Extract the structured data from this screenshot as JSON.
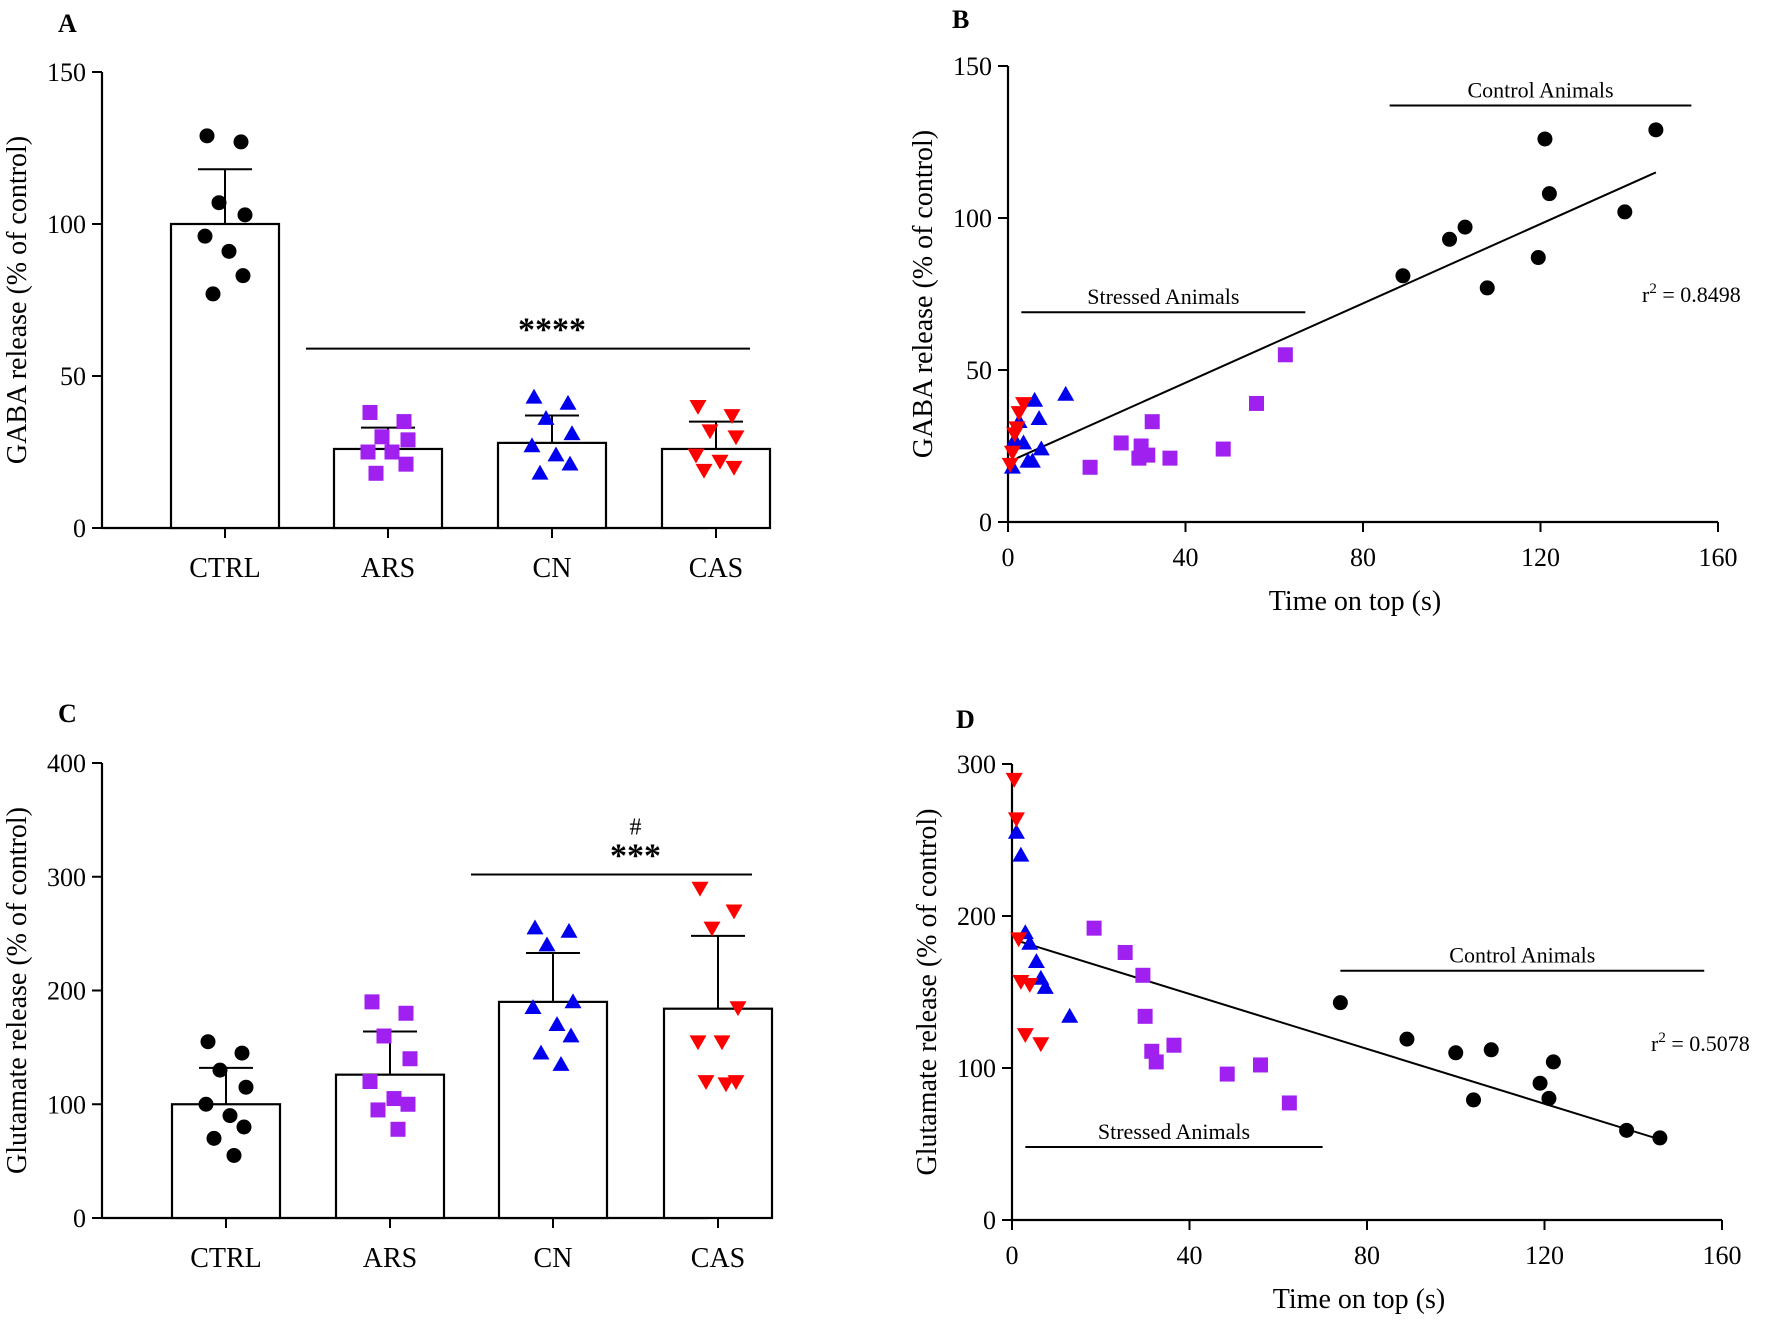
{
  "colors": {
    "ctrl": "#000000",
    "ars": "#a020f0",
    "cn": "#0000ee",
    "cas": "#ff0000",
    "axis": "#000000",
    "bar_fill": "#ffffff"
  },
  "chart_data": [
    {
      "id": "A",
      "panel": "A",
      "type": "bar",
      "ylabel": "GABA release (% of control)",
      "xlabel": "",
      "ylim": [
        0,
        150
      ],
      "yticks": [
        0,
        50,
        100,
        150
      ],
      "categories": [
        "CTRL",
        "ARS",
        "CN",
        "CAS"
      ],
      "values": [
        100,
        26,
        28,
        26
      ],
      "errors": [
        18,
        7,
        9,
        9
      ],
      "markers": [
        "circle",
        "square",
        "triangle-up",
        "triangle-down"
      ],
      "colors": [
        "#000000",
        "#a020f0",
        "#0000ee",
        "#ff0000"
      ],
      "points": [
        [
          129,
          127,
          107,
          103,
          96,
          91,
          83,
          77
        ],
        [
          38,
          35,
          30,
          29,
          25,
          25,
          21,
          18
        ],
        [
          43,
          41,
          36,
          31,
          27,
          24,
          21,
          18
        ],
        [
          40,
          37,
          32,
          30,
          24,
          22,
          20,
          19
        ]
      ],
      "significance": {
        "label": "****",
        "from": "ARS",
        "to": "CAS"
      }
    },
    {
      "id": "B",
      "panel": "B",
      "type": "scatter",
      "xlabel": "Time on top (s)",
      "ylabel": "GABA release (% of control)",
      "xlim": [
        0,
        160
      ],
      "ylim": [
        0,
        150
      ],
      "xticks": [
        0,
        40,
        80,
        120,
        160
      ],
      "yticks": [
        0,
        50,
        100,
        150
      ],
      "series": [
        {
          "name": "CTRL",
          "marker": "circle",
          "color": "#000000",
          "x": [
            89,
            99.5,
            103,
            108,
            119.5,
            121,
            122,
            139,
            146
          ],
          "y": [
            81,
            93,
            97,
            77,
            87,
            126,
            108,
            102,
            129
          ]
        },
        {
          "name": "ARS",
          "marker": "square",
          "color": "#a020f0",
          "x": [
            18.5,
            25.5,
            29.5,
            30,
            31.5,
            32.5,
            36.5,
            48.5,
            56,
            62.5
          ],
          "y": [
            18,
            26,
            21,
            25,
            22,
            33,
            21,
            24,
            39,
            55
          ]
        },
        {
          "name": "CN",
          "marker": "triangle-up",
          "color": "#0000ee",
          "x": [
            1,
            1.5,
            2.5,
            3.5,
            4.5,
            5.5,
            6,
            7,
            7.5,
            13
          ],
          "y": [
            18,
            27,
            33,
            26,
            20,
            20,
            40,
            34,
            24,
            42
          ]
        },
        {
          "name": "CAS",
          "marker": "triangle-down",
          "color": "#ff0000",
          "x": [
            0.5,
            1,
            1.5,
            2,
            2.5,
            3.5
          ],
          "y": [
            19,
            23,
            29,
            31,
            36,
            39
          ]
        }
      ],
      "regression": {
        "x": [
          2,
          146
        ],
        "y": [
          21,
          115
        ]
      },
      "annotations": [
        {
          "text": "Control Animals",
          "x1": 86,
          "x2": 154,
          "y": 137
        },
        {
          "text": "Stressed Animals",
          "x1": 3,
          "x2": 67,
          "y": 69
        }
      ],
      "r2_label": "r",
      "r2_exp": "2",
      "r2_value": " = 0.8498"
    },
    {
      "id": "C",
      "panel": "C",
      "type": "bar",
      "ylabel": "Glutamate release (% of control)",
      "xlabel": "",
      "ylim": [
        0,
        400
      ],
      "yticks": [
        0,
        100,
        200,
        300,
        400
      ],
      "categories": [
        "CTRL",
        "ARS",
        "CN",
        "CAS"
      ],
      "values": [
        100,
        126,
        190,
        184
      ],
      "errors": [
        32,
        38,
        43,
        64
      ],
      "markers": [
        "circle",
        "square",
        "triangle-up",
        "triangle-down"
      ],
      "colors": [
        "#000000",
        "#a020f0",
        "#0000ee",
        "#ff0000"
      ],
      "points": [
        [
          155,
          145,
          130,
          115,
          100,
          90,
          80,
          70,
          55
        ],
        [
          190,
          180,
          160,
          140,
          120,
          105,
          100,
          95,
          78
        ],
        [
          255,
          252,
          240,
          190,
          185,
          170,
          160,
          145,
          135
        ],
        [
          290,
          270,
          255,
          185,
          155,
          155,
          120,
          120,
          118
        ]
      ],
      "significance": {
        "label": "***",
        "secondary": "#",
        "from": "CN",
        "to": "CAS"
      }
    },
    {
      "id": "D",
      "panel": "D",
      "type": "scatter",
      "xlabel": "Time on top (s)",
      "ylabel": "Glutamate release (% of control)",
      "xlim": [
        0,
        160
      ],
      "ylim": [
        0,
        300
      ],
      "xticks": [
        0,
        40,
        80,
        120,
        160
      ],
      "yticks": [
        0,
        100,
        200,
        300
      ],
      "series": [
        {
          "name": "CTRL",
          "marker": "circle",
          "color": "#000000",
          "x": [
            74,
            89,
            100,
            104,
            108,
            119,
            121,
            122,
            138.5,
            146
          ],
          "y": [
            143,
            119,
            110,
            79,
            112,
            90,
            80,
            104,
            59,
            54
          ]
        },
        {
          "name": "ARS",
          "marker": "square",
          "color": "#a020f0",
          "x": [
            18.5,
            25.5,
            29.5,
            30,
            31.5,
            32.5,
            36.5,
            48.5,
            56,
            62.5
          ],
          "y": [
            192,
            176,
            161,
            134,
            111,
            104,
            115,
            96,
            102,
            77
          ]
        },
        {
          "name": "CN",
          "marker": "triangle-up",
          "color": "#0000ee",
          "x": [
            1,
            2,
            3,
            4,
            5.5,
            6.5,
            7.5,
            13
          ],
          "y": [
            255,
            240,
            189,
            182,
            170,
            159,
            153,
            134
          ]
        },
        {
          "name": "CAS",
          "marker": "triangle-down",
          "color": "#ff0000",
          "x": [
            0.5,
            1,
            1.5,
            2,
            3,
            4,
            6.5
          ],
          "y": [
            290,
            264,
            185,
            157,
            122,
            155,
            116
          ]
        }
      ],
      "regression": {
        "x": [
          2,
          146
        ],
        "y": [
          183,
          53
        ]
      },
      "annotations": [
        {
          "text": "Control Animals",
          "x1": 74,
          "x2": 156,
          "y": 164
        },
        {
          "text": "Stressed Animals",
          "x1": 3,
          "x2": 70,
          "y": 48
        }
      ],
      "r2_label": "r",
      "r2_exp": "2",
      "r2_value": " = 0.5078"
    }
  ]
}
